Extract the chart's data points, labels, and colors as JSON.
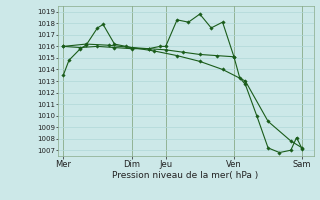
{
  "xlabel": "Pression niveau de la mer( hPa )",
  "ylim": [
    1006.5,
    1019.5
  ],
  "yticks": [
    1007,
    1008,
    1009,
    1010,
    1011,
    1012,
    1013,
    1014,
    1015,
    1016,
    1017,
    1018,
    1019
  ],
  "day_labels": [
    "Mer",
    "Dim",
    "Jeu",
    "Ven",
    "Sam"
  ],
  "day_positions": [
    0,
    36,
    54,
    90,
    126
  ],
  "xlim": [
    -3,
    132
  ],
  "bg_color": "#cce8e8",
  "grid_color": "#b0d8d8",
  "vline_color": "#88aa88",
  "line_color": "#1a5c1a",
  "series": [
    [
      0,
      1013.5,
      3,
      1014.8,
      9,
      1015.8,
      12,
      1016.1,
      18,
      1017.6,
      21,
      1017.9,
      27,
      1016.2,
      33,
      1016.0,
      36,
      1015.9,
      45,
      1015.8,
      51,
      1016.0,
      54,
      1016.0,
      60,
      1018.3,
      66,
      1018.1,
      72,
      1018.8,
      78,
      1017.6,
      84,
      1018.1,
      90,
      1015.1,
      93,
      1013.3,
      96,
      1012.7,
      102,
      1010.0,
      108,
      1007.2,
      114,
      1006.8,
      120,
      1007.0,
      123,
      1008.1,
      126,
      1007.1
    ],
    [
      0,
      1016.0,
      9,
      1015.9,
      18,
      1016.0,
      27,
      1015.9,
      36,
      1015.8,
      45,
      1015.8,
      54,
      1015.7,
      63,
      1015.5,
      72,
      1015.3,
      81,
      1015.2,
      90,
      1015.1
    ],
    [
      0,
      1016.0,
      12,
      1016.2,
      24,
      1016.1,
      36,
      1015.9,
      48,
      1015.6,
      60,
      1015.2,
      72,
      1014.7,
      84,
      1014.0,
      96,
      1013.0,
      108,
      1009.5,
      120,
      1007.8,
      126,
      1007.2
    ]
  ],
  "ytick_fontsize": 5.0,
  "xtick_fontsize": 6.0,
  "xlabel_fontsize": 6.5
}
